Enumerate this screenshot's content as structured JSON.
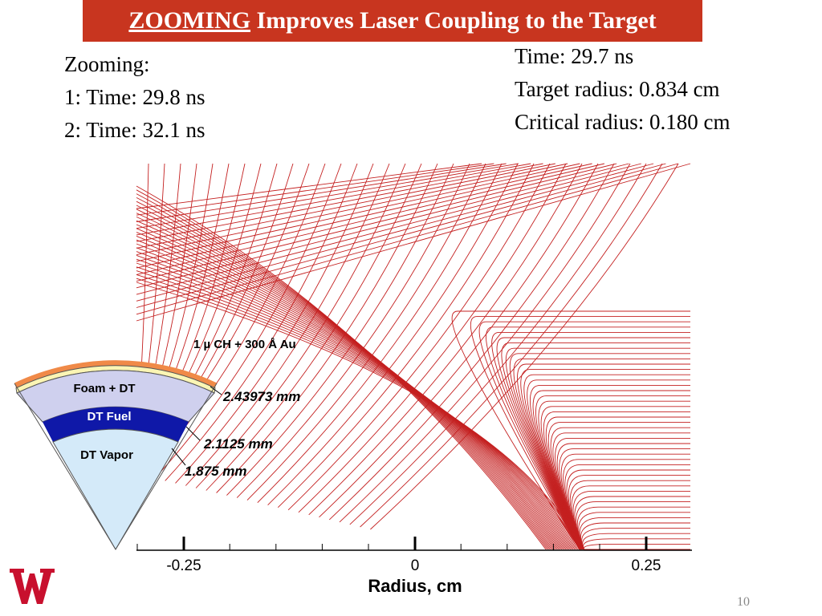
{
  "title": {
    "highlight": "ZOOMING",
    "rest": " Improves Laser Coupling to the Target"
  },
  "zooming": {
    "heading": "Zooming:",
    "line1": "1: Time: 29.8 ns",
    "line2": "2: Time: 32.1 ns"
  },
  "stats": {
    "time": "Time: 29.7 ns",
    "target_radius": "Target radius: 0.834 cm",
    "critical_radius": "Critical radius: 0.180 cm"
  },
  "target": {
    "coating": "1 µ CH + 300 Å Au",
    "layers": {
      "foam": "Foam + DT",
      "fuel": "DT Fuel",
      "vapor": "DT Vapor"
    },
    "radii": {
      "outer": "2.43973 mm",
      "middle": "2.1125 mm",
      "inner": "1.875 mm"
    }
  },
  "axis": {
    "label": "Radius, cm",
    "ticks": [
      "-0.25",
      "0",
      "0.25"
    ]
  },
  "page_number": "10",
  "colors": {
    "title_bg": "#c8351f",
    "ray": "#c42020",
    "foam": "#cfd0ee",
    "fuel": "#0f18a8",
    "vapor": "#d4eaf9",
    "ablator": "#fbf5b4",
    "coating": "#f08a48",
    "logo": "#c8102e"
  }
}
